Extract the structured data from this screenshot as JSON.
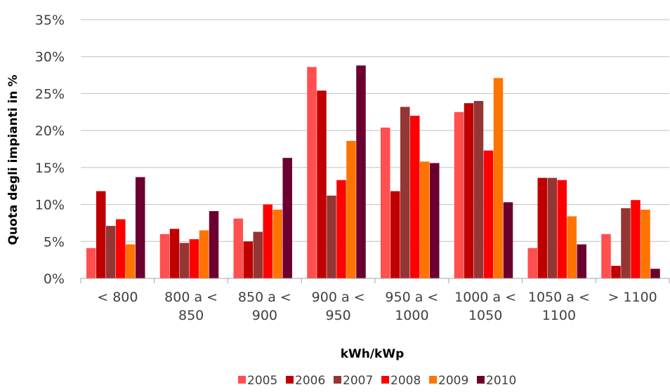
{
  "chart_data": {
    "type": "bar",
    "xlabel": "kWh/kWp",
    "ylabel": "Quota degli impianti in %",
    "ylim": [
      0,
      35
    ],
    "yticks": [
      "0%",
      "5%",
      "10%",
      "15%",
      "20%",
      "25%",
      "30%",
      "35%"
    ],
    "grid": true,
    "legend_position": "bottom",
    "categories": [
      [
        "< 800"
      ],
      [
        "800 a <",
        "850"
      ],
      [
        "850 a <",
        "900"
      ],
      [
        "900 a <",
        "950"
      ],
      [
        "950 a <",
        "1000"
      ],
      [
        "1000 a <",
        "1050"
      ],
      [
        "1050 a <",
        "1100"
      ],
      [
        "> 1100"
      ]
    ],
    "series": [
      {
        "name": "2005",
        "color": "#ff4f4f",
        "values": [
          4.1,
          6.0,
          8.1,
          28.6,
          20.4,
          22.5,
          4.1,
          6.0
        ]
      },
      {
        "name": "2006",
        "color": "#c00000",
        "values": [
          11.8,
          6.7,
          5.0,
          25.4,
          11.8,
          23.7,
          13.6,
          1.7
        ]
      },
      {
        "name": "2007",
        "color": "#943634",
        "values": [
          7.1,
          4.8,
          6.3,
          11.2,
          23.2,
          24.0,
          13.6,
          9.5
        ]
      },
      {
        "name": "2008",
        "color": "#ff0000",
        "values": [
          8.0,
          5.3,
          10.0,
          13.3,
          22.0,
          17.3,
          13.3,
          10.6
        ]
      },
      {
        "name": "2009",
        "color": "#ff7300",
        "values": [
          4.6,
          6.5,
          9.3,
          18.6,
          15.8,
          27.1,
          8.4,
          9.3
        ]
      },
      {
        "name": "2010",
        "color": "#6b0030",
        "values": [
          13.7,
          9.1,
          16.3,
          28.8,
          15.6,
          10.3,
          4.6,
          1.3
        ]
      }
    ]
  }
}
